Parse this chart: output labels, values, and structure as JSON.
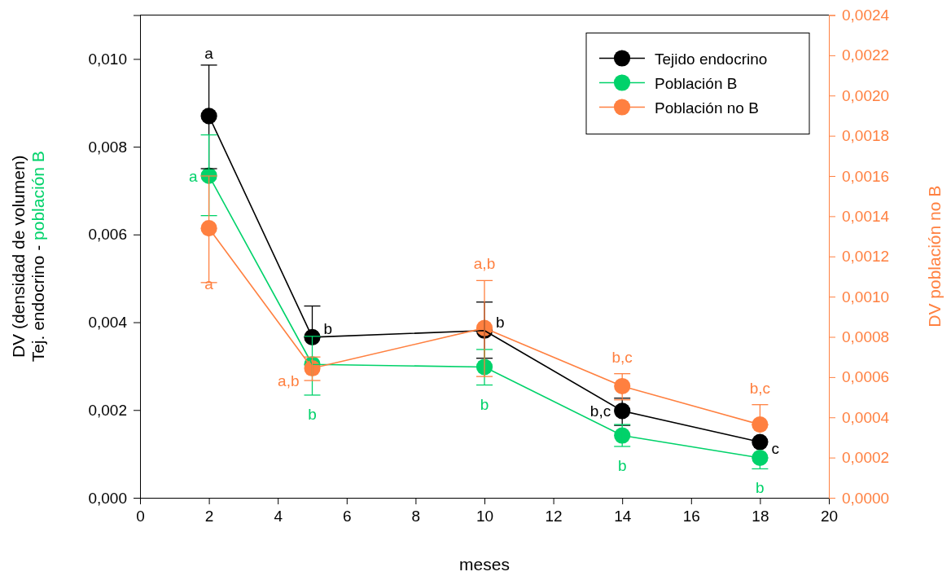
{
  "chart_data": {
    "type": "line",
    "xlabel": "meses",
    "ylabel": "DV (densidad de volumen)\nTej. endocrino - población B",
    "y2label": "DV población no B",
    "x": [
      2,
      5,
      10,
      14,
      18
    ],
    "xlim": [
      0,
      20
    ],
    "xticks": [
      0,
      2,
      4,
      6,
      8,
      10,
      12,
      14,
      16,
      18,
      20
    ],
    "ylim": [
      0,
      0.011
    ],
    "yticks": [
      {
        "value": 0,
        "label": "0,000"
      },
      {
        "value": 0.002,
        "label": "0,002"
      },
      {
        "value": 0.004,
        "label": "0,004"
      },
      {
        "value": 0.006,
        "label": "0,006"
      },
      {
        "value": 0.008,
        "label": "0,008"
      },
      {
        "value": 0.01,
        "label": "0,010"
      }
    ],
    "y2lim": [
      0,
      0.0024
    ],
    "y2ticks": [
      {
        "value": 0,
        "label": "0,0000"
      },
      {
        "value": 0.0002,
        "label": "0,0002"
      },
      {
        "value": 0.0004,
        "label": "0,0004"
      },
      {
        "value": 0.0006,
        "label": "0,0006"
      },
      {
        "value": 0.0008,
        "label": "0,0008"
      },
      {
        "value": 0.001,
        "label": "0,0010"
      },
      {
        "value": 0.0012,
        "label": "0,0012"
      },
      {
        "value": 0.0014,
        "label": "0,0014"
      },
      {
        "value": 0.0016,
        "label": "0,0016"
      },
      {
        "value": 0.0018,
        "label": "0,0018"
      },
      {
        "value": 0.002,
        "label": "0,0020"
      },
      {
        "value": 0.0022,
        "label": "0,0022"
      },
      {
        "value": 0.0024,
        "label": "0,0024"
      }
    ],
    "marker": "circle",
    "legend": "top right",
    "grid": false,
    "series": [
      {
        "name": "Tejido endocrino",
        "color": "#000000",
        "values": [
          0.0087,
          0.00366,
          0.00381,
          0.00198,
          0.00127
        ],
        "errors": [
          [
            0.0075,
            0.00986
          ],
          [
            0.00366,
            0.00437
          ],
          [
            0.00318,
            0.00446
          ],
          [
            0.00165,
            0.00227
          ],
          null
        ],
        "value_labels": [
          "a",
          "b",
          "b",
          "b,c",
          "c"
        ]
      },
      {
        "name": "Población B",
        "color": "#00d26a",
        "values": [
          0.00734,
          0.00304,
          0.00298,
          0.00142,
          0.00091
        ],
        "errors": [
          [
            0.00643,
            0.00827
          ],
          [
            0.00234,
            0.00368
          ],
          [
            0.00257,
            0.00338
          ],
          [
            0.00117,
            0.00167
          ],
          [
            0.00066,
            0.00091
          ]
        ],
        "value_labels": [
          "a",
          "b",
          "b",
          "b",
          "b"
        ]
      },
      {
        "name": "Población no B",
        "color": "#ff8040",
        "axis": "y2",
        "values": [
          0.00134,
          0.000644,
          0.000844,
          0.000555,
          0.000364
        ],
        "errors": [
          [
            0.00107,
            0.0016
          ],
          [
            0.000583,
            0.0007
          ],
          [
            0.000603,
            0.00108
          ],
          [
            0.000487,
            0.000617
          ],
          [
            0.000364,
            0.000463
          ]
        ],
        "value_labels": [
          "a",
          "a,b",
          "a,b",
          "b,c",
          "b,c"
        ]
      }
    ]
  }
}
